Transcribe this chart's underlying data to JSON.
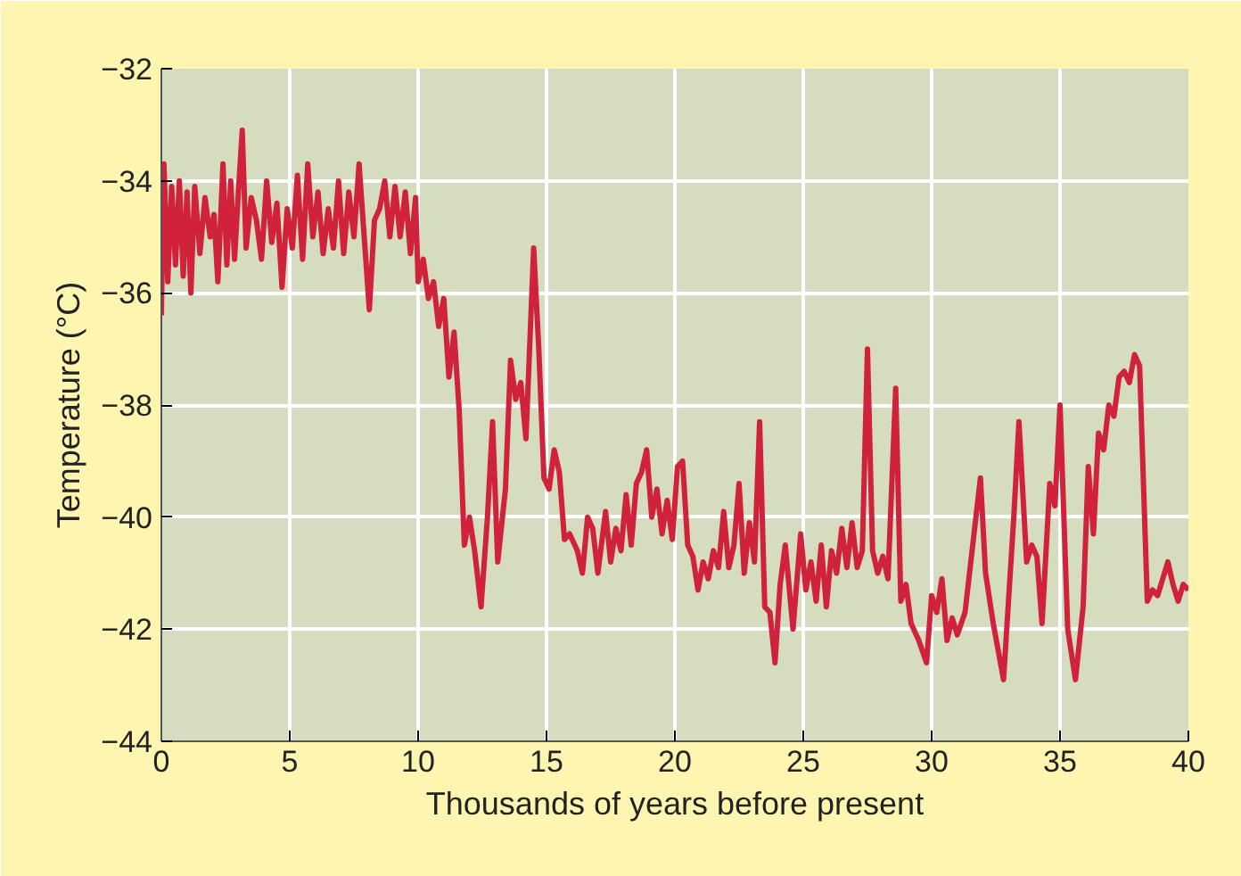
{
  "chart_data": {
    "type": "line",
    "xlabel": "Thousands of years before present",
    "ylabel": "Temperature (°C)",
    "xlim": [
      0,
      40
    ],
    "ylim": [
      -44,
      -32
    ],
    "xticks": [
      0,
      5,
      10,
      15,
      20,
      25,
      30,
      35,
      40
    ],
    "yticks": [
      {
        "value": -44,
        "label": "−44"
      },
      {
        "value": -42,
        "label": "−42"
      },
      {
        "value": -40,
        "label": "−40"
      },
      {
        "value": -38,
        "label": "−38"
      },
      {
        "value": -36,
        "label": "−36"
      },
      {
        "value": -34,
        "label": "−34"
      },
      {
        "value": -32,
        "label": "−32"
      }
    ],
    "grid": true,
    "series": [
      {
        "color": "#d0223a",
        "x": [
          0,
          0.1,
          0.25,
          0.4,
          0.55,
          0.7,
          0.85,
          1.0,
          1.15,
          1.3,
          1.5,
          1.7,
          1.9,
          2.05,
          2.2,
          2.4,
          2.55,
          2.7,
          2.85,
          3.0,
          3.15,
          3.3,
          3.5,
          3.7,
          3.9,
          4.1,
          4.3,
          4.5,
          4.7,
          4.9,
          5.1,
          5.3,
          5.5,
          5.7,
          5.9,
          6.1,
          6.3,
          6.5,
          6.7,
          6.9,
          7.1,
          7.3,
          7.5,
          7.7,
          7.9,
          8.1,
          8.3,
          8.5,
          8.7,
          8.9,
          9.1,
          9.3,
          9.5,
          9.7,
          9.9,
          10.0,
          10.2,
          10.4,
          10.6,
          10.8,
          11.0,
          11.2,
          11.4,
          11.6,
          11.8,
          12.0,
          12.2,
          12.45,
          12.7,
          12.9,
          13.1,
          13.4,
          13.6,
          13.8,
          14.0,
          14.2,
          14.5,
          14.7,
          14.9,
          15.1,
          15.3,
          15.5,
          15.7,
          15.9,
          16.2,
          16.4,
          16.6,
          16.8,
          17.0,
          17.3,
          17.5,
          17.7,
          17.9,
          18.1,
          18.3,
          18.5,
          18.7,
          18.9,
          19.1,
          19.3,
          19.5,
          19.7,
          19.9,
          20.1,
          20.3,
          20.5,
          20.7,
          20.9,
          21.1,
          21.3,
          21.5,
          21.7,
          21.9,
          22.1,
          22.3,
          22.5,
          22.7,
          22.9,
          23.1,
          23.3,
          23.5,
          23.7,
          23.9,
          24.1,
          24.3,
          24.6,
          24.9,
          25.1,
          25.3,
          25.5,
          25.7,
          25.9,
          26.1,
          26.3,
          26.5,
          26.7,
          26.9,
          27.1,
          27.3,
          27.5,
          27.7,
          27.9,
          28.1,
          28.3,
          28.6,
          28.8,
          29.0,
          29.2,
          29.5,
          29.8,
          30.0,
          30.2,
          30.4,
          30.6,
          30.8,
          31.0,
          31.3,
          31.6,
          31.9,
          32.1,
          32.4,
          32.8,
          33.2,
          33.4,
          33.7,
          33.9,
          34.1,
          34.3,
          34.6,
          34.8,
          35.0,
          35.3,
          35.6,
          35.9,
          36.1,
          36.3,
          36.5,
          36.7,
          36.9,
          37.1,
          37.3,
          37.5,
          37.7,
          37.9,
          38.1,
          38.4,
          38.6,
          38.8,
          39.0,
          39.2,
          39.4,
          39.6,
          39.8,
          40.0
        ],
        "values": [
          -36.4,
          -33.7,
          -35.8,
          -34.1,
          -35.5,
          -34.0,
          -35.7,
          -34.2,
          -36.0,
          -34.1,
          -35.3,
          -34.3,
          -35.0,
          -34.6,
          -35.8,
          -33.7,
          -35.5,
          -34.0,
          -35.4,
          -34.2,
          -33.1,
          -35.2,
          -34.3,
          -34.7,
          -35.4,
          -34.0,
          -35.1,
          -34.4,
          -35.9,
          -34.5,
          -35.2,
          -33.9,
          -35.4,
          -33.7,
          -35.0,
          -34.2,
          -35.3,
          -34.5,
          -35.2,
          -34.0,
          -35.3,
          -34.2,
          -35.0,
          -33.7,
          -35.0,
          -36.3,
          -34.7,
          -34.5,
          -34.0,
          -35.0,
          -34.1,
          -35.0,
          -34.2,
          -35.3,
          -34.3,
          -35.8,
          -35.4,
          -36.1,
          -35.8,
          -36.6,
          -36.1,
          -37.5,
          -36.7,
          -38.1,
          -40.5,
          -40.0,
          -40.6,
          -41.6,
          -40.0,
          -38.3,
          -40.8,
          -39.5,
          -37.2,
          -37.9,
          -37.6,
          -38.6,
          -35.2,
          -37.0,
          -39.3,
          -39.5,
          -38.8,
          -39.2,
          -40.4,
          -40.3,
          -40.6,
          -41.0,
          -40.0,
          -40.2,
          -41.0,
          -39.9,
          -40.8,
          -40.2,
          -40.6,
          -39.6,
          -40.5,
          -39.4,
          -39.2,
          -38.8,
          -40.0,
          -39.5,
          -40.3,
          -39.7,
          -40.4,
          -39.1,
          -39.0,
          -40.5,
          -40.7,
          -41.3,
          -40.8,
          -41.1,
          -40.6,
          -40.9,
          -39.9,
          -40.9,
          -40.5,
          -39.4,
          -41.0,
          -40.1,
          -40.8,
          -38.3,
          -41.6,
          -41.7,
          -42.6,
          -41.2,
          -40.5,
          -42.0,
          -40.3,
          -41.3,
          -40.8,
          -41.5,
          -40.5,
          -41.6,
          -40.6,
          -41.0,
          -40.2,
          -40.9,
          -40.1,
          -40.9,
          -40.6,
          -37.0,
          -40.6,
          -41.0,
          -40.7,
          -41.1,
          -37.7,
          -41.5,
          -41.2,
          -41.9,
          -42.2,
          -42.6,
          -41.4,
          -41.7,
          -41.1,
          -42.2,
          -41.8,
          -42.1,
          -41.7,
          -40.5,
          -39.3,
          -41.0,
          -41.9,
          -42.9,
          -40.0,
          -38.3,
          -40.8,
          -40.5,
          -40.7,
          -41.9,
          -39.4,
          -39.8,
          -38.0,
          -42.0,
          -42.9,
          -41.6,
          -39.1,
          -40.3,
          -38.5,
          -38.8,
          -38.0,
          -38.2,
          -37.5,
          -37.4,
          -37.6,
          -37.1,
          -37.3,
          -41.5,
          -41.3,
          -41.4,
          -41.1,
          -40.8,
          -41.2,
          -41.5,
          -41.2,
          -41.3
        ]
      }
    ]
  }
}
